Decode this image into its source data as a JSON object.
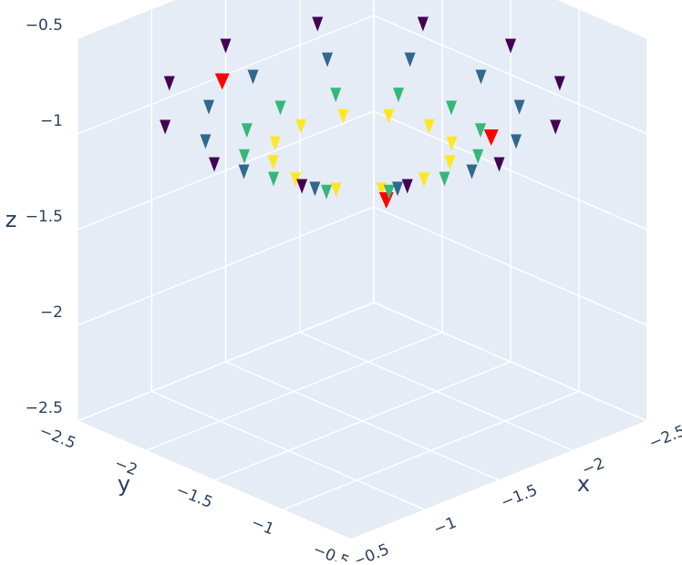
{
  "chart_data": {
    "type": "cone3d",
    "xlabel": "x",
    "ylabel": "y",
    "zlabel": "z",
    "xlim": [
      -2.5,
      -0.5
    ],
    "ylim": [
      -2.5,
      -0.5
    ],
    "zlim": [
      -2.5,
      -0.5
    ],
    "xticks": [
      {
        "value": -2.5,
        "label": "−2.5"
      },
      {
        "value": -2,
        "label": "−2"
      },
      {
        "value": -1.5,
        "label": "−1.5"
      },
      {
        "value": -1,
        "label": "−1"
      },
      {
        "value": -0.5,
        "label": "−0.5"
      }
    ],
    "yticks": [
      {
        "value": -2.5,
        "label": "−2.5"
      },
      {
        "value": -2,
        "label": "−2"
      },
      {
        "value": -1.5,
        "label": "−1.5"
      },
      {
        "value": -1,
        "label": "−1"
      },
      {
        "value": -0.5,
        "label": "−0.5"
      }
    ],
    "zticks": [
      {
        "value": -2.5,
        "label": "−2.5"
      },
      {
        "value": -2,
        "label": "−2"
      },
      {
        "value": -1.5,
        "label": "−1.5"
      },
      {
        "value": -1,
        "label": "−1"
      },
      {
        "value": -0.5,
        "label": "−0.5"
      }
    ],
    "grid": true,
    "pane_color": "#e5ecf6",
    "series": [
      {
        "color": "#440154",
        "x": [
          -0.5,
          -0.63,
          -1.0,
          -1.5,
          -2.0,
          -2.37,
          -2.5,
          -2.37,
          -2.0,
          -1.5,
          -1.0,
          -0.63
        ],
        "y": [
          -1.5,
          -1.0,
          -0.63,
          -0.5,
          -0.63,
          -1.0,
          -1.5,
          -2.0,
          -2.37,
          -2.5,
          -2.37,
          -2.0
        ],
        "z": [
          -0.85,
          -0.85,
          -0.85,
          -0.85,
          -0.85,
          -0.85,
          -0.85,
          -0.85,
          -0.85,
          -0.85,
          -0.85,
          -0.85
        ]
      },
      {
        "color": "#31688e",
        "x": [
          -0.7,
          -0.81,
          -1.1,
          -1.5,
          -1.9,
          -2.19,
          -2.3,
          -2.19,
          -1.9,
          -1.5,
          -1.1,
          -0.81
        ],
        "y": [
          -1.5,
          -1.1,
          -0.81,
          -0.7,
          -0.81,
          -1.1,
          -1.5,
          -1.9,
          -2.19,
          -2.3,
          -2.19,
          -1.9
        ],
        "z": [
          -0.95,
          -0.95,
          -0.95,
          -0.95,
          -0.95,
          -0.95,
          -0.95,
          -0.95,
          -0.95,
          -0.95,
          -0.95,
          -0.95
        ]
      },
      {
        "color": "#35b779",
        "x": [
          -0.9,
          -0.98,
          -1.2,
          -1.5,
          -1.8,
          -2.02,
          -2.1,
          -2.02,
          -1.8,
          -1.5,
          -1.2,
          -0.98
        ],
        "y": [
          -1.5,
          -1.2,
          -0.98,
          -0.9,
          -0.98,
          -1.2,
          -1.5,
          -1.8,
          -2.02,
          -2.1,
          -2.02,
          -1.8
        ],
        "z": [
          -1.05,
          -1.05,
          -1.05,
          -1.05,
          -1.05,
          -1.05,
          -1.05,
          -1.05,
          -1.05,
          -1.05,
          -1.05,
          -1.05
        ]
      },
      {
        "color": "#fde725",
        "x": [
          -1.05,
          -1.11,
          -1.27,
          -1.5,
          -1.73,
          -1.89,
          -1.95,
          -1.89,
          -1.73,
          -1.5,
          -1.27,
          -1.11
        ],
        "y": [
          -1.5,
          -1.27,
          -1.11,
          -1.05,
          -1.11,
          -1.27,
          -1.5,
          -1.73,
          -1.89,
          -1.95,
          -1.89,
          -1.73
        ],
        "z": [
          -1.1,
          -1.1,
          -1.1,
          -1.1,
          -1.1,
          -1.1,
          -1.1,
          -1.1,
          -1.1,
          -1.1,
          -1.1,
          -1.1
        ]
      },
      {
        "color": "#ff0000",
        "x": [
          -1.2,
          -2.0,
          -1.2
        ],
        "y": [
          -2.2,
          -1.1,
          -1.0
        ],
        "z": [
          -0.85,
          -1.05,
          -1.1
        ]
      }
    ]
  }
}
